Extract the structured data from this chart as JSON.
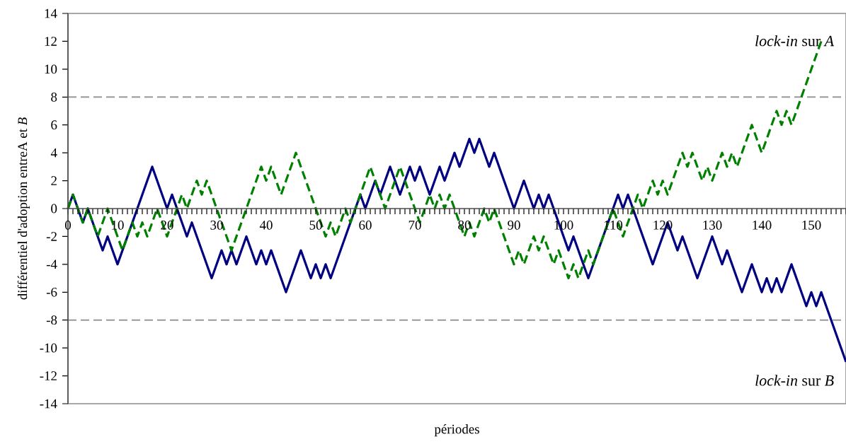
{
  "chart_data": {
    "type": "line",
    "xlabel": "périodes",
    "ylabel": "différentiel d'adoption entreA et *B*",
    "annotations": [
      "*lock-in* sur *A*",
      "*lock-in* sur *B*"
    ],
    "xlim": [
      0,
      157
    ],
    "ylim": [
      -14,
      14
    ],
    "yticks": [
      -14,
      -12,
      -10,
      -8,
      -6,
      -4,
      -2,
      0,
      2,
      4,
      6,
      8,
      10,
      12,
      14
    ],
    "xticks": [
      0,
      {
        "value": 1,
        "label": null
      },
      {
        "value": 2,
        "label": null
      },
      {
        "value": 3,
        "label": null
      },
      {
        "value": 4,
        "label": null
      },
      {
        "value": 5,
        "label": null
      },
      {
        "value": 6,
        "label": null
      },
      {
        "value": 7,
        "label": null
      },
      {
        "value": 8,
        "label": null
      },
      {
        "value": 9,
        "label": null
      },
      10,
      {
        "value": 11,
        "label": null
      },
      {
        "value": 12,
        "label": null
      },
      {
        "value": 13,
        "label": null
      },
      {
        "value": 14,
        "label": null
      },
      {
        "value": 15,
        "label": null
      },
      {
        "value": 16,
        "label": null
      },
      {
        "value": 17,
        "label": null
      },
      {
        "value": 18,
        "label": null
      },
      {
        "value": 19,
        "label": null
      },
      20,
      {
        "value": 21,
        "label": null
      },
      {
        "value": 22,
        "label": null
      },
      {
        "value": 23,
        "label": null
      },
      {
        "value": 24,
        "label": null
      },
      {
        "value": 25,
        "label": null
      },
      {
        "value": 26,
        "label": null
      },
      {
        "value": 27,
        "label": null
      },
      {
        "value": 28,
        "label": null
      },
      {
        "value": 29,
        "label": null
      },
      30,
      {
        "value": 31,
        "label": null
      },
      {
        "value": 32,
        "label": null
      },
      {
        "value": 33,
        "label": null
      },
      {
        "value": 34,
        "label": null
      },
      {
        "value": 35,
        "label": null
      },
      {
        "value": 36,
        "label": null
      },
      {
        "value": 37,
        "label": null
      },
      {
        "value": 38,
        "label": null
      },
      {
        "value": 39,
        "label": null
      },
      40,
      {
        "value": 41,
        "label": null
      },
      {
        "value": 42,
        "label": null
      },
      {
        "value": 43,
        "label": null
      },
      {
        "value": 44,
        "label": null
      },
      {
        "value": 45,
        "label": null
      },
      {
        "value": 46,
        "label": null
      },
      {
        "value": 47,
        "label": null
      },
      {
        "value": 48,
        "label": null
      },
      {
        "value": 49,
        "label": null
      },
      50,
      {
        "value": 51,
        "label": null
      },
      {
        "value": 52,
        "label": null
      },
      {
        "value": 53,
        "label": null
      },
      {
        "value": 54,
        "label": null
      },
      {
        "value": 55,
        "label": null
      },
      {
        "value": 56,
        "label": null
      },
      {
        "value": 57,
        "label": null
      },
      {
        "value": 58,
        "label": null
      },
      {
        "value": 59,
        "label": null
      },
      60,
      {
        "value": 61,
        "label": null
      },
      {
        "value": 62,
        "label": null
      },
      {
        "value": 63,
        "label": null
      },
      {
        "value": 64,
        "label": null
      },
      {
        "value": 65,
        "label": null
      },
      {
        "value": 66,
        "label": null
      },
      {
        "value": 67,
        "label": null
      },
      {
        "value": 68,
        "label": null
      },
      {
        "value": 69,
        "label": null
      },
      70,
      {
        "value": 71,
        "label": null
      },
      {
        "value": 72,
        "label": null
      },
      {
        "value": 73,
        "label": null
      },
      {
        "value": 74,
        "label": null
      },
      {
        "value": 75,
        "label": null
      },
      {
        "value": 76,
        "label": null
      },
      {
        "value": 77,
        "label": null
      },
      {
        "value": 78,
        "label": null
      },
      {
        "value": 79,
        "label": null
      },
      80,
      {
        "value": 81,
        "label": null
      },
      {
        "value": 82,
        "label": null
      },
      {
        "value": 83,
        "label": null
      },
      {
        "value": 84,
        "label": null
      },
      {
        "value": 85,
        "label": null
      },
      {
        "value": 86,
        "label": null
      },
      {
        "value": 87,
        "label": null
      },
      {
        "value": 88,
        "label": null
      },
      {
        "value": 89,
        "label": null
      },
      90,
      {
        "value": 91,
        "label": null
      },
      {
        "value": 92,
        "label": null
      },
      {
        "value": 93,
        "label": null
      },
      {
        "value": 94,
        "label": null
      },
      {
        "value": 95,
        "label": null
      },
      {
        "value": 96,
        "label": null
      },
      {
        "value": 97,
        "label": null
      },
      {
        "value": 98,
        "label": null
      },
      {
        "value": 99,
        "label": null
      },
      100,
      {
        "value": 101,
        "label": null
      },
      {
        "value": 102,
        "label": null
      },
      {
        "value": 103,
        "label": null
      },
      {
        "value": 104,
        "label": null
      },
      {
        "value": 105,
        "label": null
      },
      {
        "value": 106,
        "label": null
      },
      {
        "value": 107,
        "label": null
      },
      {
        "value": 108,
        "label": null
      },
      {
        "value": 109,
        "label": null
      },
      110,
      {
        "value": 111,
        "label": null
      },
      {
        "value": 112,
        "label": null
      },
      {
        "value": 113,
        "label": null
      },
      {
        "value": 114,
        "label": null
      },
      {
        "value": 115,
        "label": null
      },
      {
        "value": 116,
        "label": null
      },
      {
        "value": 117,
        "label": null
      },
      {
        "value": 118,
        "label": null
      },
      {
        "value": 119,
        "label": null
      },
      120,
      {
        "value": 121,
        "label": null
      },
      {
        "value": 122,
        "label": null
      },
      {
        "value": 123,
        "label": null
      },
      {
        "value": 124,
        "label": null
      },
      {
        "value": 125,
        "label": null
      },
      {
        "value": 126,
        "label": null
      },
      {
        "value": 127,
        "label": null
      },
      {
        "value": 128,
        "label": null
      },
      {
        "value": 129,
        "label": null
      },
      130,
      {
        "value": 131,
        "label": null
      },
      {
        "value": 132,
        "label": null
      },
      {
        "value": 133,
        "label": null
      },
      {
        "value": 134,
        "label": null
      },
      {
        "value": 135,
        "label": null
      },
      {
        "value": 136,
        "label": null
      },
      {
        "value": 137,
        "label": null
      },
      {
        "value": 138,
        "label": null
      },
      {
        "value": 139,
        "label": null
      },
      140,
      {
        "value": 141,
        "label": null
      },
      {
        "value": 142,
        "label": null
      },
      {
        "value": 143,
        "label": null
      },
      {
        "value": 144,
        "label": null
      },
      {
        "value": 145,
        "label": null
      },
      {
        "value": 146,
        "label": null
      },
      {
        "value": 147,
        "label": null
      },
      {
        "value": 148,
        "label": null
      },
      {
        "value": 149,
        "label": null
      },
      150,
      {
        "value": 151,
        "label": null
      },
      {
        "value": 152,
        "label": null
      },
      {
        "value": 153,
        "label": null
      },
      {
        "value": 154,
        "label": null
      },
      {
        "value": 155,
        "label": null
      },
      {
        "value": 156,
        "label": null
      },
      {
        "value": 157,
        "label": null
      }
    ],
    "ref_lines": [
      {
        "axis": "y",
        "value": 8,
        "color": "#999999",
        "line_style": "dashed"
      },
      {
        "axis": "y",
        "value": -8,
        "color": "#999999",
        "line_style": "dashed"
      }
    ],
    "grid": false,
    "marker": "none",
    "series": [
      {
        "color": "#000080",
        "line_style": "solid",
        "x": [
          0,
          1,
          3,
          4,
          7,
          8,
          10,
          17,
          20,
          21,
          24,
          25,
          29,
          31,
          32,
          33,
          34,
          36,
          38,
          39,
          40,
          41,
          44,
          47,
          49,
          50,
          51,
          52,
          53,
          59,
          60,
          62,
          63,
          65,
          67,
          69,
          70,
          71,
          73,
          75,
          76,
          78,
          79,
          81,
          82,
          83,
          85,
          86,
          90,
          92,
          94,
          95,
          96,
          97,
          101,
          102,
          105,
          110,
          111,
          112,
          113,
          118,
          121,
          123,
          124,
          127,
          130,
          132,
          133,
          136,
          138,
          140,
          141,
          142,
          143,
          144,
          146,
          149,
          150,
          151,
          152,
          157
        ],
        "values": [
          0,
          1,
          -1,
          0,
          -3,
          -2,
          -4,
          3,
          0,
          1,
          -2,
          -1,
          -5,
          -3,
          -4,
          -3,
          -4,
          -2,
          -4,
          -3,
          -4,
          -3,
          -6,
          -3,
          -5,
          -4,
          -5,
          -4,
          -5,
          1,
          0,
          2,
          1,
          3,
          1,
          3,
          2,
          3,
          1,
          3,
          2,
          4,
          3,
          5,
          4,
          5,
          3,
          4,
          0,
          2,
          0,
          1,
          0,
          1,
          -3,
          -2,
          -5,
          0,
          1,
          0,
          1,
          -4,
          -1,
          -3,
          -2,
          -5,
          -2,
          -4,
          -3,
          -6,
          -4,
          -6,
          -5,
          -6,
          -5,
          -6,
          -4,
          -7,
          -6,
          -7,
          -6,
          -11
        ]
      },
      {
        "color": "#008000",
        "line_style": "dashed",
        "x": [
          0,
          1,
          3,
          4,
          6,
          8,
          11,
          13,
          14,
          15,
          16,
          18,
          20,
          23,
          24,
          26,
          27,
          28,
          33,
          39,
          40,
          41,
          43,
          46,
          52,
          53,
          54,
          56,
          57,
          61,
          64,
          67,
          71,
          73,
          74,
          75,
          76,
          77,
          80,
          81,
          82,
          84,
          85,
          86,
          90,
          91,
          92,
          94,
          95,
          96,
          98,
          99,
          101,
          102,
          103,
          105,
          106,
          110,
          112,
          115,
          116,
          118,
          119,
          120,
          121,
          124,
          125,
          126,
          128,
          129,
          130,
          132,
          133,
          134,
          135,
          138,
          140,
          143,
          144,
          145,
          146,
          152
        ],
        "values": [
          0,
          1,
          -1,
          0,
          -2,
          0,
          -3,
          -1,
          -2,
          -1,
          -2,
          0,
          -2,
          1,
          0,
          2,
          1,
          2,
          -3,
          3,
          2,
          3,
          1,
          4,
          -2,
          -1,
          -2,
          0,
          -1,
          3,
          0,
          3,
          -1,
          1,
          0,
          1,
          0,
          1,
          -2,
          -1,
          -2,
          0,
          -1,
          0,
          -4,
          -3,
          -4,
          -2,
          -3,
          -2,
          -4,
          -3,
          -5,
          -4,
          -5,
          -3,
          -4,
          0,
          -2,
          1,
          0,
          2,
          1,
          2,
          1,
          4,
          3,
          4,
          2,
          3,
          2,
          4,
          3,
          4,
          3,
          6,
          4,
          7,
          6,
          7,
          6,
          12
        ]
      }
    ]
  }
}
